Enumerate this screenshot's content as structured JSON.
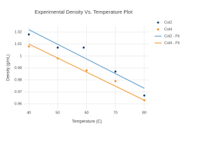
{
  "chart_data": {
    "type": "scatter",
    "title": "Experimental Density Vs. Temperature Plot",
    "x_label": "Temperature (C)",
    "y_label": "Density (g/mL)",
    "xlim": [
      38.3,
      81.7
    ],
    "xticks": [
      40,
      50,
      60,
      70,
      80
    ],
    "ylim": [
      0.9554,
      1.0251
    ],
    "yticks": [
      0.96,
      0.97,
      0.98,
      0.99,
      1,
      1.01,
      1.02
    ],
    "grid": true,
    "legend": "right",
    "series": [
      {
        "name": "Col2",
        "color": "#1f3e73",
        "mode": "markers",
        "x": [
          40,
          50,
          59,
          70,
          80
        ],
        "values": [
          1.018,
          1.007,
          1.007,
          0.987,
          0.967
        ]
      },
      {
        "name": "Col4",
        "color": "#f28e2b",
        "mode": "markers",
        "x": [
          40,
          50,
          60,
          70,
          80
        ],
        "values": [
          1.008,
          0.998,
          0.988,
          0.979,
          0.963
        ]
      },
      {
        "name": "Col2 - Fit",
        "color": "#6ea6d2",
        "mode": "lines",
        "x": [
          40,
          80
        ],
        "values": [
          1.022,
          0.973
        ]
      },
      {
        "name": "Col4 - Fit",
        "color": "#f5a54a",
        "mode": "lines",
        "x": [
          40,
          80
        ],
        "values": [
          1.01,
          0.963
        ]
      }
    ]
  }
}
